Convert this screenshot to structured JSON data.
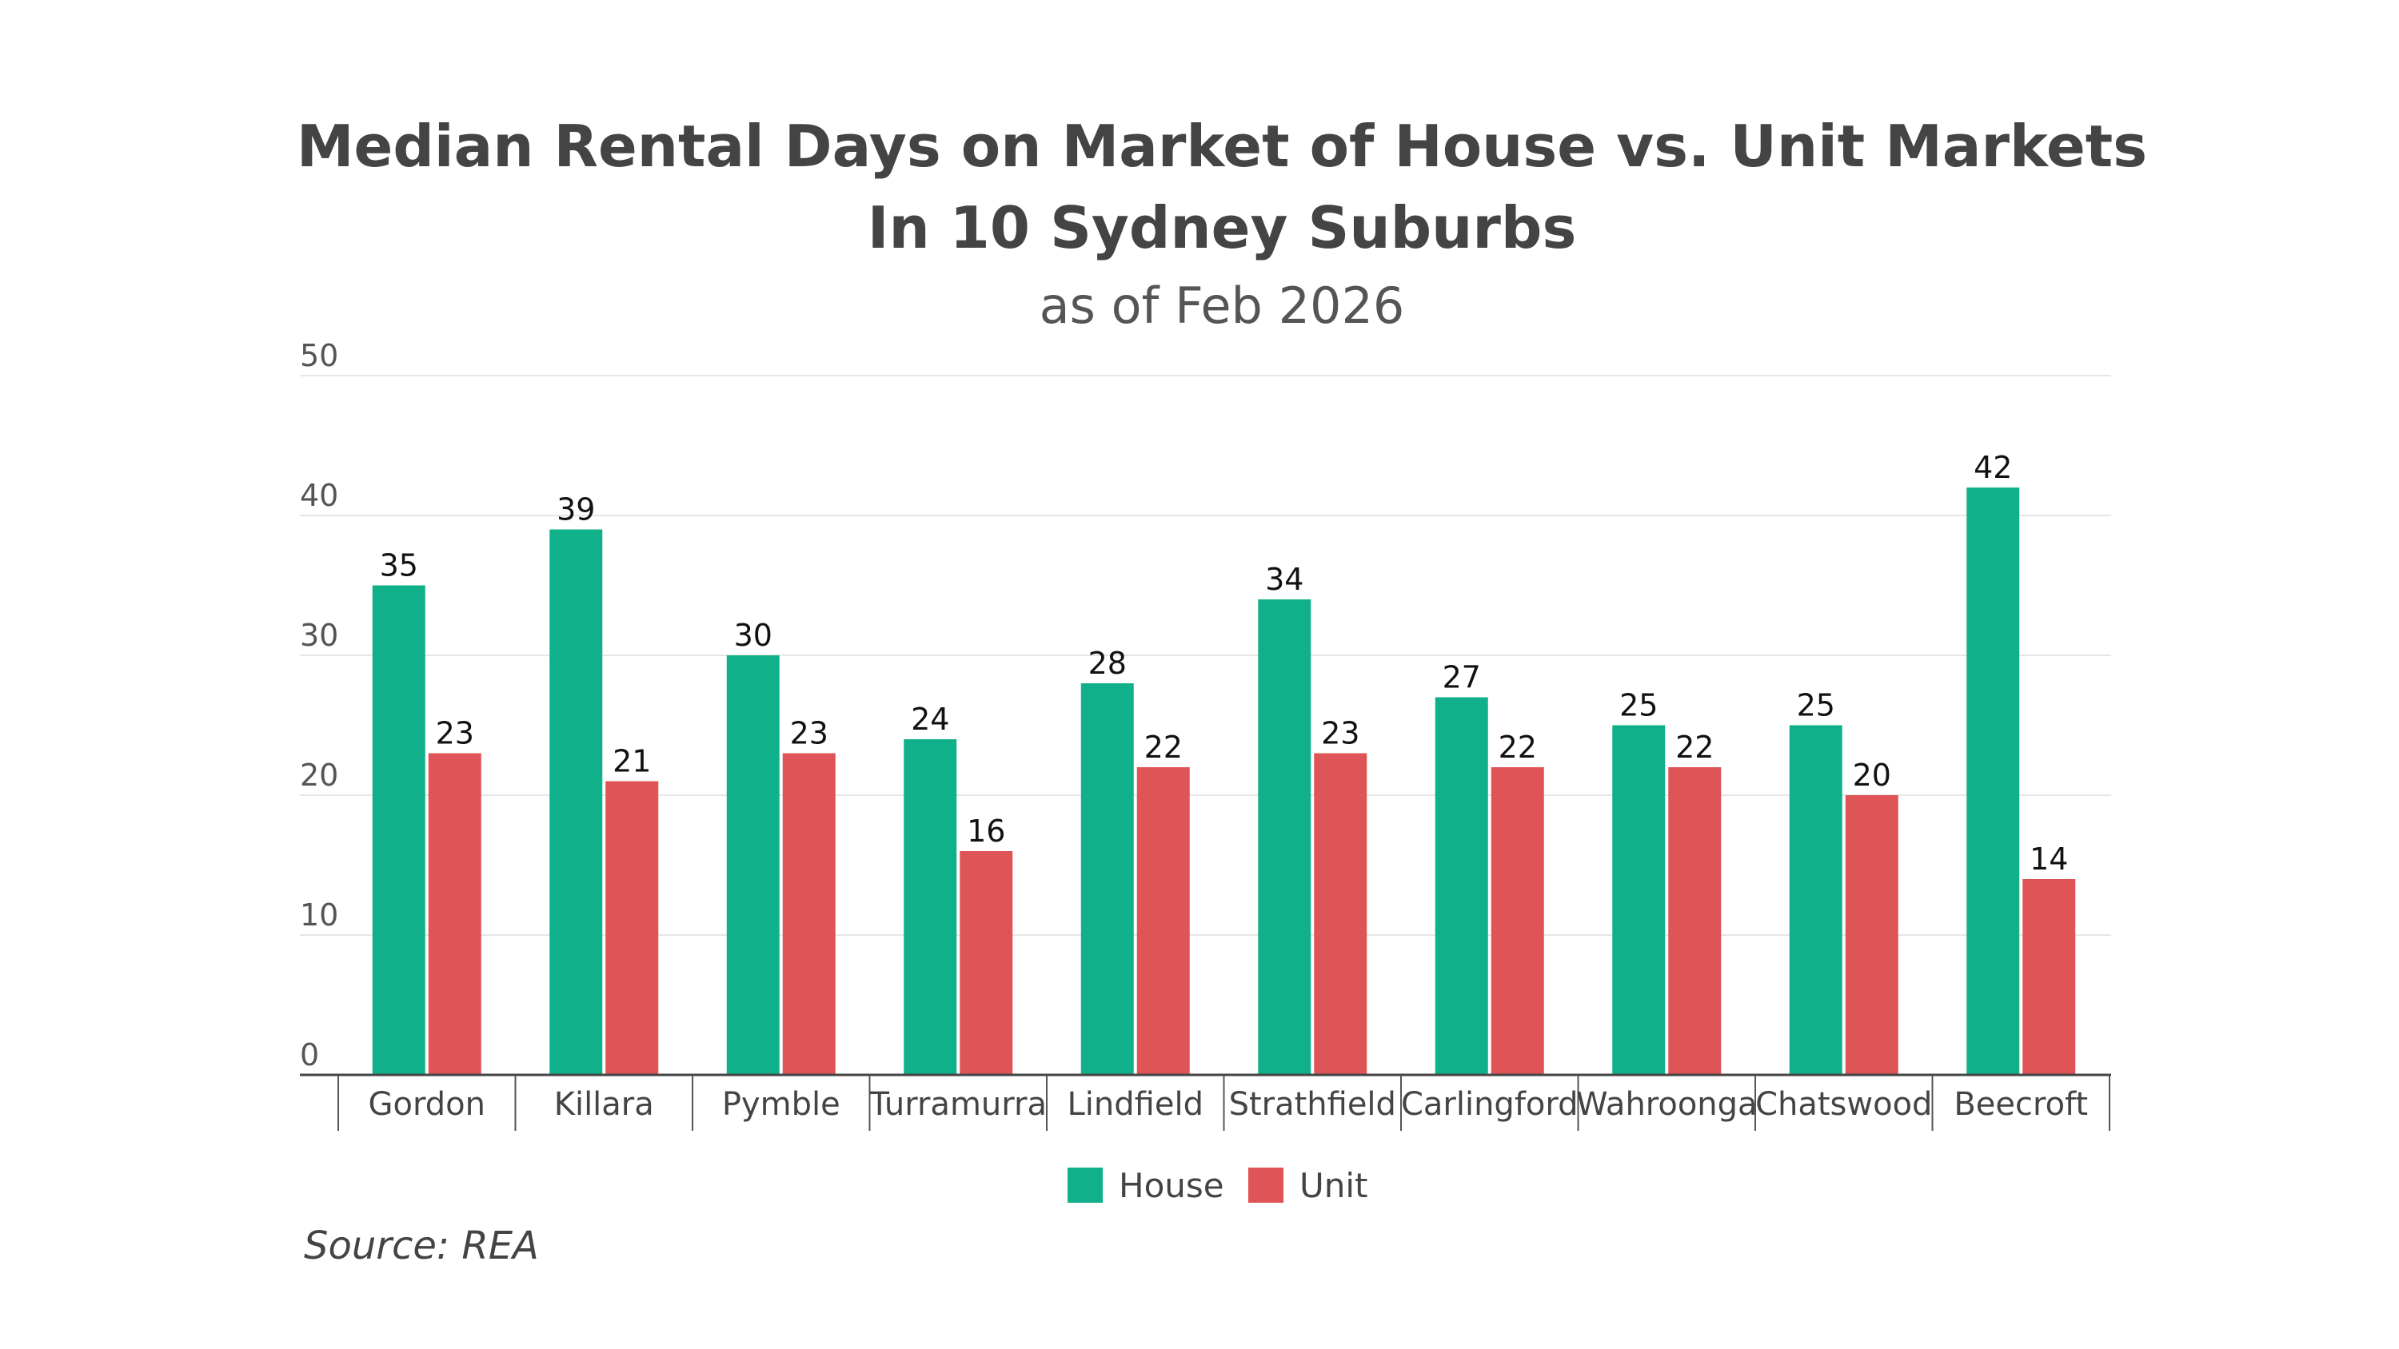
{
  "chart_data": {
    "type": "bar",
    "title_line1": "Median Rental Days on Market of House vs. Unit Markets",
    "title_line2": "In 10 Sydney Suburbs",
    "subtitle": "as of Feb 2026",
    "xlabel": "",
    "ylabel": "",
    "ylim": [
      0,
      50
    ],
    "yticks": [
      0,
      10,
      20,
      30,
      40,
      50
    ],
    "grid": true,
    "legend_position": "bottom-center",
    "categories": [
      "Gordon",
      "Killara",
      "Pymble",
      "Turramurra",
      "Lindfield",
      "Strathfield",
      "Carlingford",
      "Wahroonga",
      "Chatswood",
      "Beecroft"
    ],
    "series": [
      {
        "name": "House",
        "color": "#10b18a",
        "values": [
          35,
          39,
          30,
          24,
          28,
          34,
          27,
          25,
          25,
          42
        ]
      },
      {
        "name": "Unit",
        "color": "#df5456",
        "values": [
          23,
          21,
          23,
          16,
          22,
          23,
          22,
          22,
          20,
          14
        ]
      }
    ],
    "source": "Source: REA"
  }
}
